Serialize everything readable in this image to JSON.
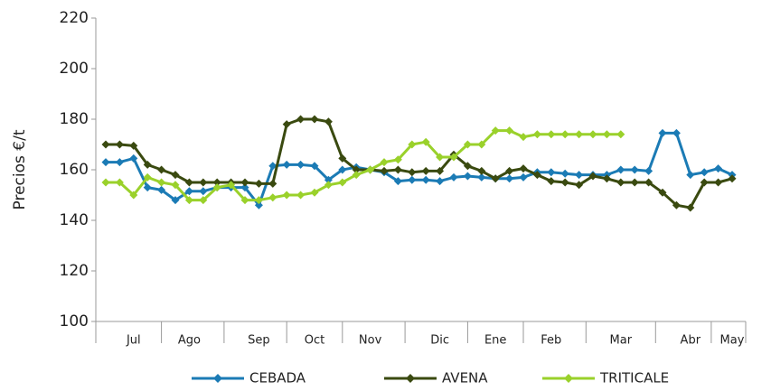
{
  "chart_data": {
    "type": "line",
    "y_label": "Precios €/t",
    "categories": [
      null,
      null,
      "Jul",
      null,
      null,
      null,
      "Ago",
      null,
      null,
      null,
      null,
      "Sep",
      null,
      null,
      null,
      "Oct",
      null,
      null,
      null,
      "Nov",
      null,
      null,
      null,
      null,
      "Dic",
      null,
      null,
      null,
      "Ene",
      null,
      null,
      null,
      "Feb",
      null,
      null,
      null,
      null,
      "Mar",
      null,
      null,
      null,
      null,
      "Abr",
      null,
      null,
      "May"
    ],
    "series": [
      {
        "name": "CEBADA",
        "color": "#1b7bb5",
        "values": [
          163,
          163,
          164.5,
          153,
          152,
          148,
          151.5,
          151.5,
          153,
          153,
          153,
          146,
          161.5,
          162,
          162,
          161.5,
          156,
          160,
          161,
          160,
          159,
          155.5,
          156,
          156,
          155.5,
          157,
          157.5,
          157,
          156.5,
          156.5,
          157,
          159,
          159,
          158.5,
          158,
          158,
          158,
          160,
          160,
          159.5,
          174.5,
          174.5,
          158,
          159,
          160.5,
          158
        ]
      },
      {
        "name": "AVENA",
        "color": "#3a4a10",
        "values": [
          170,
          170,
          169.5,
          162,
          160,
          158,
          155,
          155,
          155,
          155,
          155,
          154.5,
          154.5,
          178,
          180,
          180,
          179,
          164.5,
          160,
          160,
          159.5,
          160,
          159,
          159.5,
          159.5,
          166,
          161.5,
          159.5,
          156.5,
          159.5,
          160.5,
          158,
          155.5,
          155,
          154,
          157.5,
          156.5,
          155,
          155,
          155,
          151,
          146,
          145,
          155,
          155,
          156.5
        ]
      },
      {
        "name": "TRITICALE",
        "color": "#9ad12b",
        "values": [
          155,
          155,
          150,
          157,
          155,
          154,
          148,
          148,
          153,
          154,
          148,
          148,
          149,
          150,
          150,
          151,
          154,
          155,
          158,
          160,
          163,
          164,
          170,
          171,
          165,
          165,
          170,
          170,
          175.5,
          175.5,
          173,
          174,
          174,
          174,
          174,
          174,
          174,
          174,
          null,
          null,
          null,
          null,
          null,
          null,
          null,
          null
        ]
      }
    ],
    "ylim": [
      100,
      220
    ],
    "yticks": [
      100,
      120,
      140,
      160,
      180,
      200,
      220
    ],
    "legend": "bottom",
    "grid": false
  }
}
